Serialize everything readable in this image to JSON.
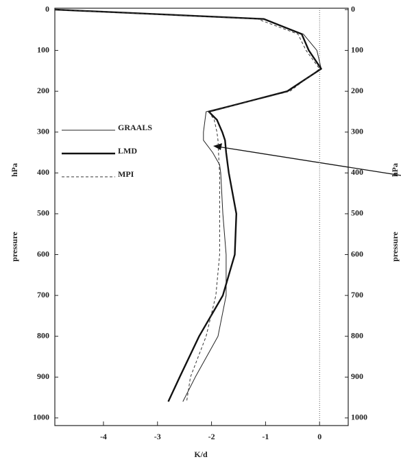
{
  "chart_data": {
    "type": "line",
    "xlabel": "K/d",
    "ylabel": "pressure",
    "yunit": "hPa",
    "xlim": [
      -4.9,
      0.53
    ],
    "ylim": [
      0,
      1012
    ],
    "xticks": [
      -4,
      -3,
      -2,
      -1,
      0
    ],
    "yticks": [
      0,
      100,
      200,
      300,
      400,
      500,
      600,
      700,
      800,
      900,
      1000
    ],
    "y_inverted": true,
    "zero_line": true,
    "y": [
      0,
      23,
      60,
      100,
      145,
      200,
      250,
      270,
      300,
      320,
      350,
      380,
      400,
      500,
      600,
      700,
      800,
      900,
      960
    ],
    "series": [
      {
        "name": "GRAALS",
        "color": "#222",
        "linewidth": 1,
        "dash": "none",
        "values": [
          -4.9,
          -1.03,
          -0.3,
          -0.05,
          0.03,
          -0.58,
          -2.1,
          -2.12,
          -2.15,
          -2.15,
          -1.98,
          -1.85,
          -1.83,
          -1.79,
          -1.73,
          -1.73,
          -1.88,
          -2.3,
          -2.53
        ]
      },
      {
        "name": "LMD",
        "color": "#111",
        "linewidth": 2.4,
        "dash": "none",
        "values": [
          -4.9,
          -1.03,
          -0.33,
          -0.2,
          0.03,
          -0.6,
          -2.05,
          -1.9,
          -1.8,
          -1.75,
          -1.73,
          -1.7,
          -1.68,
          -1.54,
          -1.57,
          -1.79,
          -2.23,
          -2.59,
          -2.8
        ]
      },
      {
        "name": "MPI",
        "color": "#333",
        "linewidth": 1,
        "dash": "4 3",
        "values": [
          -4.9,
          -1.15,
          -0.4,
          -0.25,
          0.0,
          -0.55,
          -2.05,
          -1.95,
          -1.9,
          -1.88,
          -1.87,
          -1.86,
          -1.85,
          -1.85,
          -1.85,
          -1.92,
          -2.1,
          -2.39,
          -2.46
        ]
      }
    ]
  }
}
